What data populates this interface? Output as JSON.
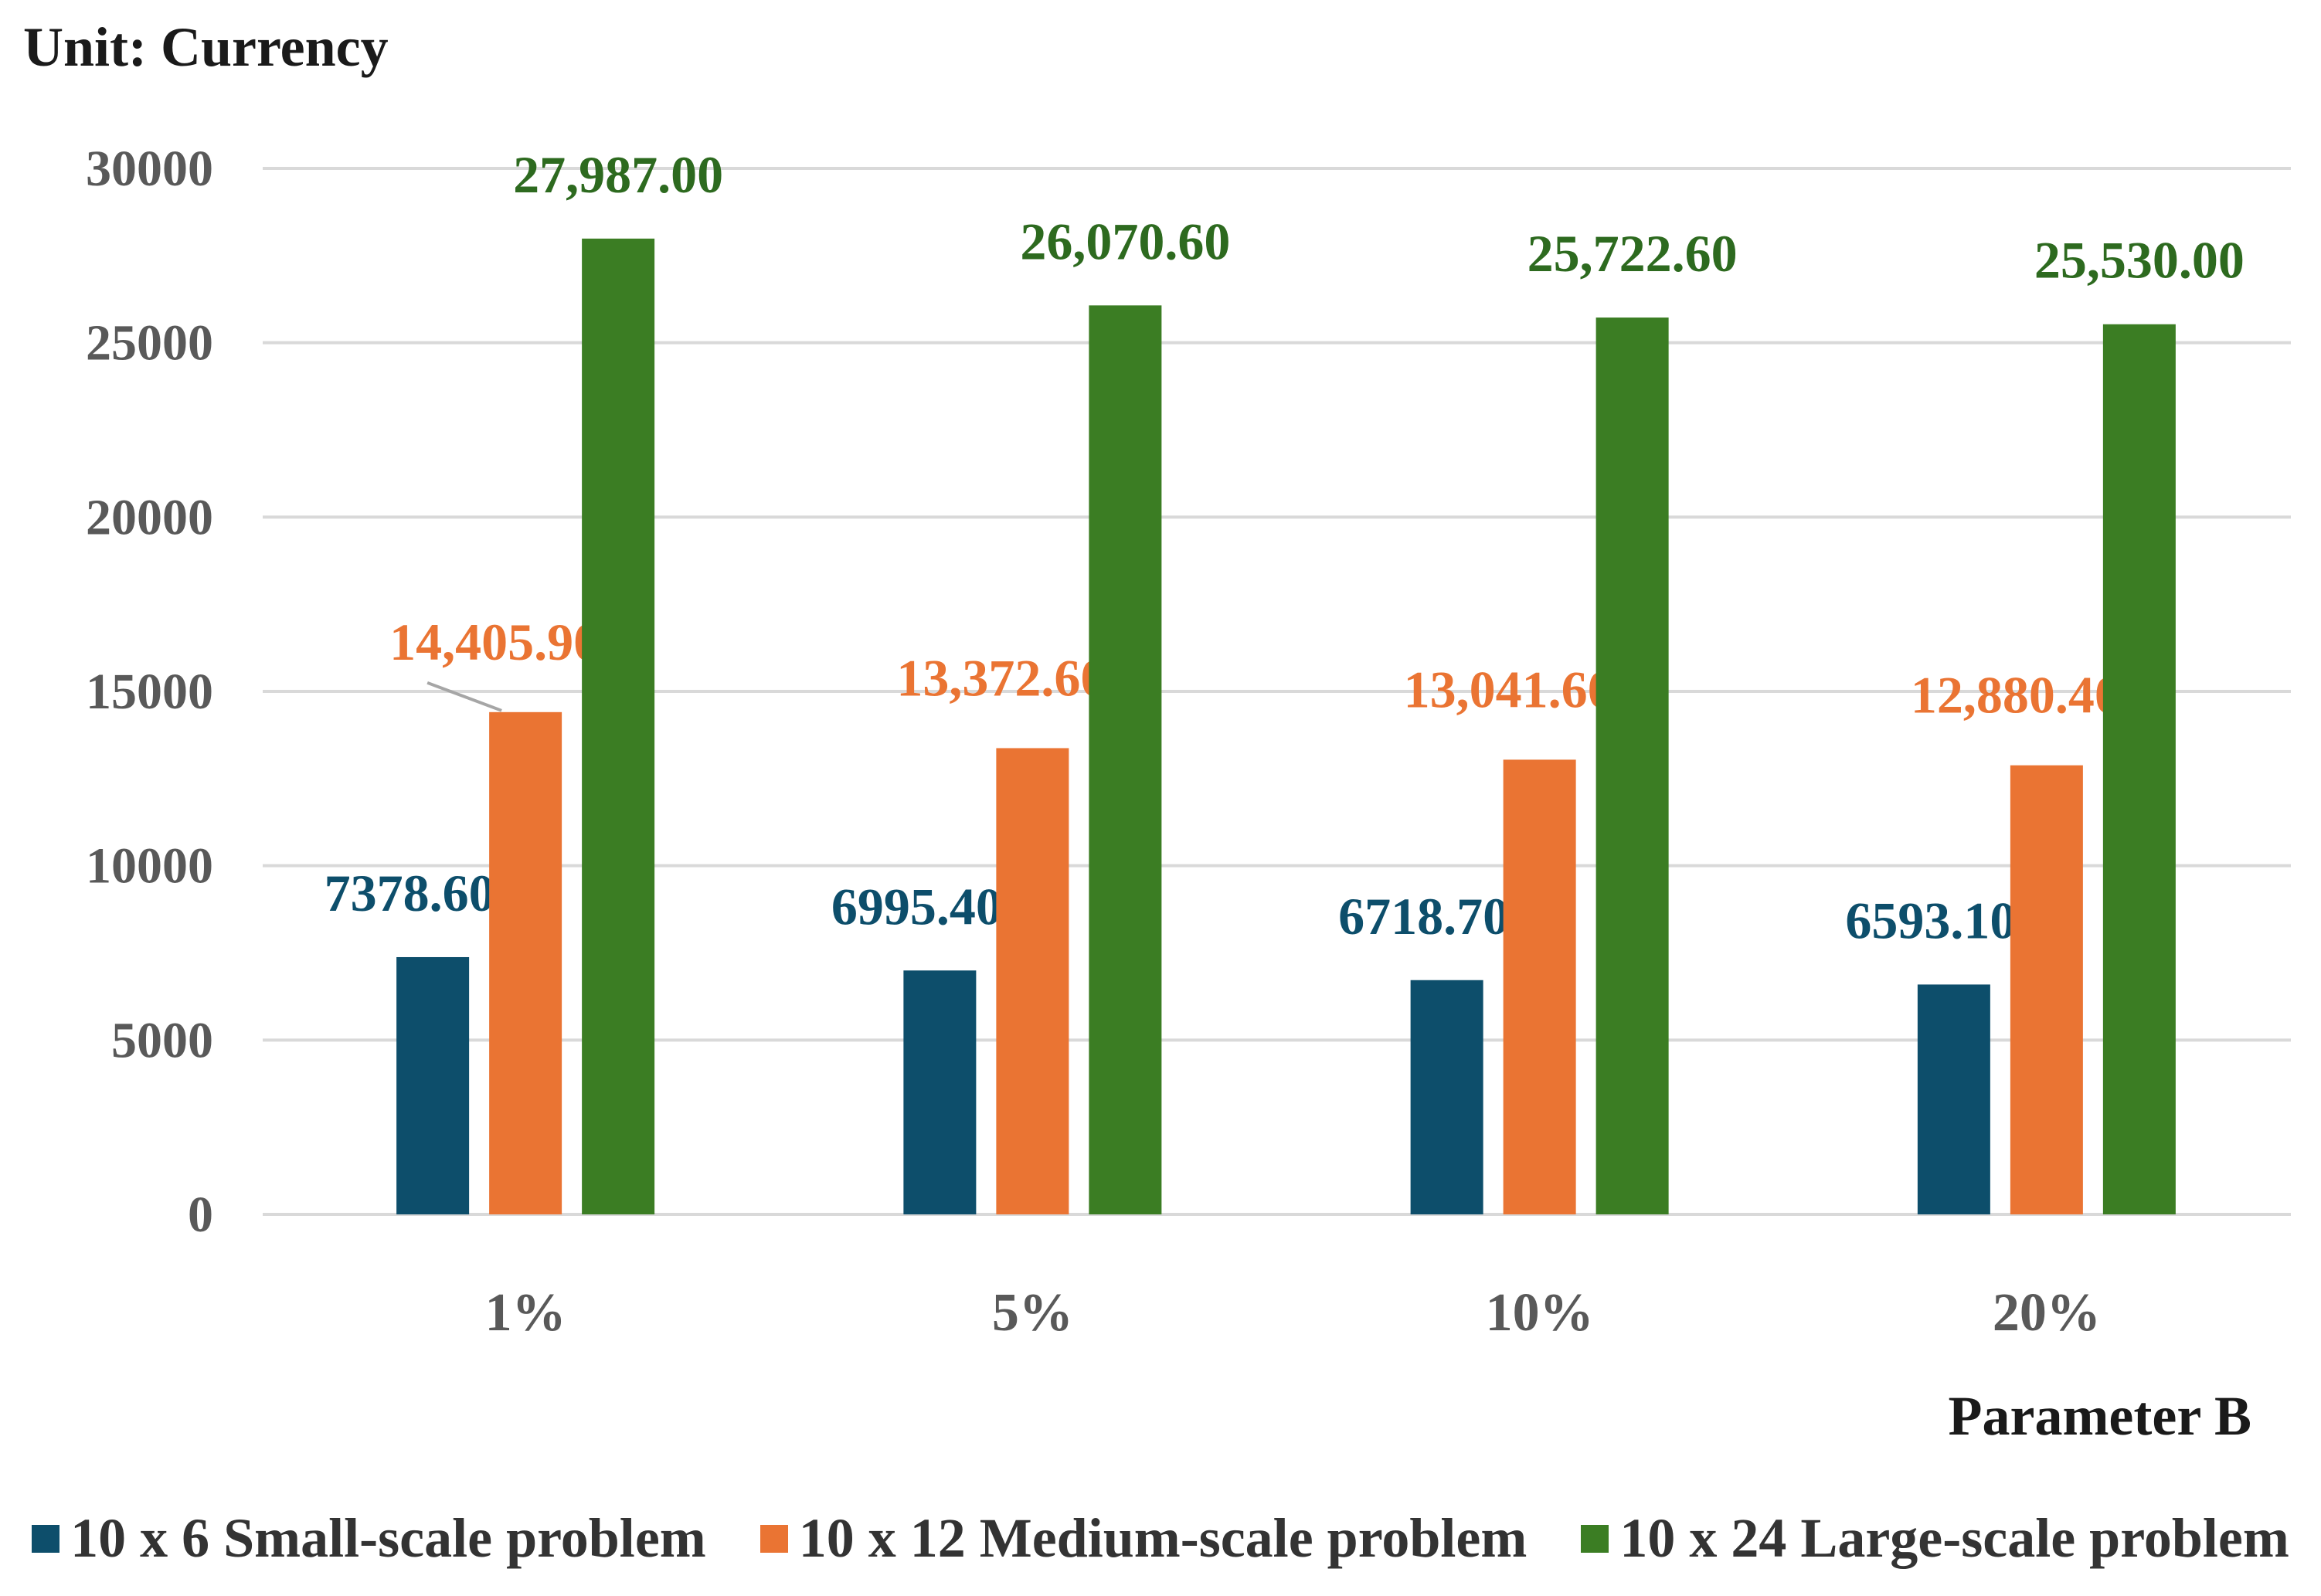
{
  "unit_label": "Unit: Currency",
  "colors": {
    "small": "#0d4e6b",
    "medium": "#ea7433",
    "large": "#3b7d23",
    "grid": "#d9d9d9",
    "axis_text": "#595959",
    "large_label": "#2d6a1f"
  },
  "chart_data": {
    "type": "bar",
    "categories": [
      "1%",
      "5%",
      "10%",
      "20%"
    ],
    "series": [
      {
        "name": "10 x 6 Small-scale problem",
        "values": [
          7378.6,
          6995.4,
          6718.7,
          6593.1
        ],
        "labels": [
          "7378.60",
          "6995.40",
          "6718.70",
          "6593.10"
        ]
      },
      {
        "name": "10 x 12 Medium-scale problem",
        "values": [
          14405.9,
          13372.6,
          13041.6,
          12880.4
        ],
        "labels": [
          "14,405.90",
          "13,372.60",
          "13,041.60",
          "12,880.40"
        ]
      },
      {
        "name": "10 x 24 Large-scale problem",
        "values": [
          27987.0,
          26070.6,
          25722.6,
          25530.0
        ],
        "labels": [
          "27,987.00",
          "26,070.60",
          "25,722.60",
          "25,530.00"
        ]
      }
    ],
    "xlabel": "Parameter B",
    "ylabel": "",
    "ylim": [
      0,
      30000
    ],
    "yticks": [
      "0",
      "5000",
      "10000",
      "15000",
      "20000",
      "25000",
      "30000"
    ],
    "grid": true,
    "legend_position": "bottom"
  }
}
